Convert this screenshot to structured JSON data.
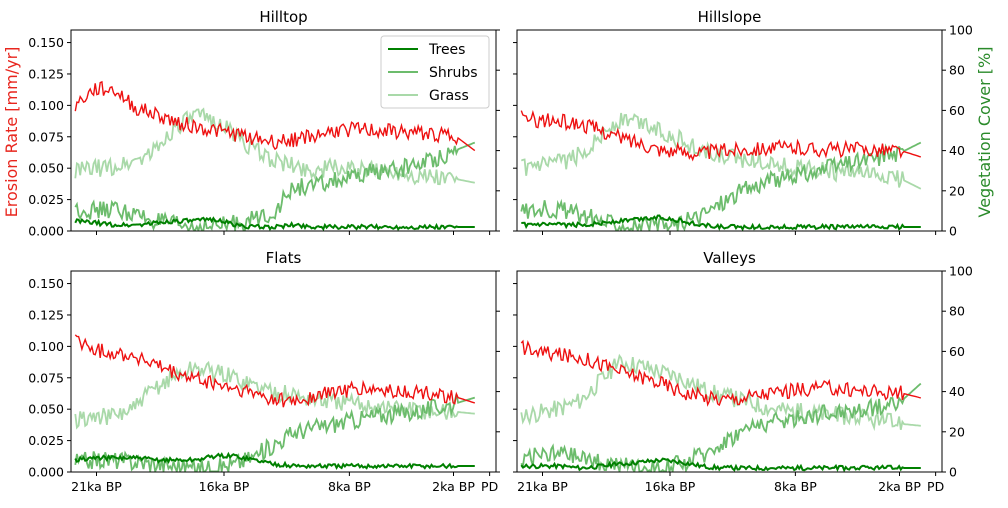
{
  "figure": {
    "ylabel_left": "Erosion Rate [mm/yr]",
    "ylabel_right": "Vegetation Cover [%]",
    "ylabel_left_color": "#e8261e",
    "ylabel_right_color": "#2a8a2a"
  },
  "chart_data": [
    {
      "type": "line",
      "title": "Hilltop",
      "xticks": [
        "21ka BP",
        "16ka BP",
        "8ka BP",
        "2ka BP",
        "PD"
      ],
      "ylim_left": [
        0,
        0.16
      ],
      "ylim_right": [
        0,
        100
      ],
      "legend": [
        "Trees",
        "Shrubs",
        "Grass"
      ],
      "legend_position": "top-right",
      "series": [
        {
          "name": "Erosion",
          "color": "#ee1111",
          "axis": "left",
          "values": [
            0.1,
            0.113,
            0.112,
            0.098,
            0.093,
            0.087,
            0.083,
            0.08,
            0.077,
            0.074,
            0.071,
            0.073,
            0.076,
            0.08,
            0.081,
            0.08,
            0.079,
            0.078,
            0.077,
            0.076,
            0.064
          ]
        },
        {
          "name": "Trees",
          "color": "#008000",
          "axis": "right",
          "values": [
            5,
            4,
            3,
            3,
            4,
            5,
            5,
            6,
            3,
            2,
            2,
            3,
            2,
            2,
            2,
            2,
            2,
            2,
            2,
            2,
            2
          ]
        },
        {
          "name": "Shrubs",
          "color": "#6cbc6c",
          "axis": "right",
          "values": [
            11,
            10,
            11,
            8,
            5,
            3,
            2,
            2,
            4,
            6,
            10,
            22,
            22,
            25,
            26,
            30,
            30,
            33,
            36,
            40,
            44
          ]
        },
        {
          "name": "Grass",
          "color": "#a9d9a9",
          "axis": "right",
          "values": [
            30,
            31,
            32,
            35,
            40,
            52,
            57,
            55,
            48,
            40,
            35,
            32,
            30,
            32,
            30,
            30,
            30,
            28,
            27,
            26,
            24
          ]
        }
      ]
    },
    {
      "type": "line",
      "title": "Hillslope",
      "xticks": [
        "21ka BP",
        "16ka BP",
        "8ka BP",
        "2ka BP",
        "PD"
      ],
      "ylim_left": [
        0,
        0.16
      ],
      "ylim_right": [
        0,
        100
      ],
      "series": [
        {
          "name": "Erosion",
          "color": "#ee1111",
          "axis": "left",
          "values": [
            0.09,
            0.088,
            0.087,
            0.085,
            0.08,
            0.074,
            0.07,
            0.065,
            0.063,
            0.062,
            0.064,
            0.065,
            0.066,
            0.066,
            0.066,
            0.065,
            0.065,
            0.065,
            0.065,
            0.064,
            0.059
          ]
        },
        {
          "name": "Trees",
          "color": "#008000",
          "axis": "right",
          "values": [
            3,
            3,
            3,
            3,
            4,
            5,
            6,
            7,
            5,
            3,
            2,
            2,
            2,
            2,
            2,
            2,
            2,
            2,
            2,
            2,
            2
          ]
        },
        {
          "name": "Shrubs",
          "color": "#6cbc6c",
          "axis": "right",
          "values": [
            10,
            11,
            11,
            8,
            5,
            3,
            2,
            2,
            4,
            8,
            14,
            20,
            24,
            26,
            28,
            30,
            33,
            35,
            37,
            39,
            44
          ]
        },
        {
          "name": "Grass",
          "color": "#a9d9a9",
          "axis": "right",
          "values": [
            31,
            32,
            34,
            38,
            48,
            55,
            54,
            50,
            45,
            40,
            37,
            36,
            35,
            33,
            31,
            30,
            29,
            28,
            27,
            26,
            21
          ]
        }
      ]
    },
    {
      "type": "line",
      "title": "Flats",
      "xticks": [
        "21ka BP",
        "16ka BP",
        "8ka BP",
        "2ka BP",
        "PD"
      ],
      "ylim_left": [
        0,
        0.16
      ],
      "ylim_right": [
        0,
        100
      ],
      "series": [
        {
          "name": "Erosion",
          "color": "#ee1111",
          "axis": "left",
          "values": [
            0.105,
            0.097,
            0.095,
            0.092,
            0.085,
            0.078,
            0.074,
            0.07,
            0.066,
            0.062,
            0.058,
            0.056,
            0.06,
            0.064,
            0.066,
            0.065,
            0.064,
            0.063,
            0.062,
            0.06,
            0.055
          ]
        },
        {
          "name": "Trees",
          "color": "#008000",
          "axis": "right",
          "values": [
            6,
            7,
            7,
            7,
            6,
            6,
            6,
            8,
            8,
            6,
            4,
            3,
            3,
            3,
            3,
            3,
            3,
            3,
            3,
            3,
            3
          ]
        },
        {
          "name": "Shrubs",
          "color": "#6cbc6c",
          "axis": "right",
          "values": [
            5,
            6,
            6,
            5,
            4,
            3,
            2,
            2,
            4,
            8,
            14,
            20,
            22,
            24,
            26,
            28,
            29,
            30,
            32,
            34,
            37
          ]
        },
        {
          "name": "Grass",
          "color": "#a9d9a9",
          "axis": "right",
          "values": [
            26,
            27,
            28,
            32,
            42,
            48,
            52,
            50,
            47,
            43,
            40,
            38,
            36,
            35,
            34,
            33,
            32,
            31,
            30,
            30,
            29
          ]
        }
      ]
    },
    {
      "type": "line",
      "title": "Valleys",
      "xticks": [
        "21ka BP",
        "16ka BP",
        "8ka BP",
        "2ka BP",
        "PD"
      ],
      "ylim_left": [
        0,
        0.16
      ],
      "ylim_right": [
        0,
        100
      ],
      "series": [
        {
          "name": "Erosion",
          "color": "#ee1111",
          "axis": "left",
          "values": [
            0.1,
            0.095,
            0.093,
            0.091,
            0.086,
            0.08,
            0.076,
            0.071,
            0.064,
            0.06,
            0.058,
            0.059,
            0.062,
            0.064,
            0.066,
            0.067,
            0.066,
            0.065,
            0.064,
            0.063,
            0.059
          ]
        },
        {
          "name": "Trees",
          "color": "#008000",
          "axis": "right",
          "values": [
            3,
            3,
            3,
            2,
            3,
            4,
            5,
            6,
            5,
            3,
            2,
            2,
            2,
            2,
            2,
            2,
            2,
            2,
            2,
            2,
            2
          ]
        },
        {
          "name": "Shrubs",
          "color": "#6cbc6c",
          "axis": "right",
          "values": [
            7,
            8,
            9,
            7,
            5,
            3,
            2,
            2,
            4,
            8,
            14,
            20,
            24,
            25,
            27,
            29,
            30,
            31,
            33,
            35,
            44
          ]
        },
        {
          "name": "Grass",
          "color": "#a9d9a9",
          "axis": "right",
          "values": [
            28,
            30,
            32,
            36,
            46,
            55,
            53,
            50,
            47,
            42,
            38,
            36,
            33,
            31,
            30,
            29,
            28,
            27,
            25,
            24,
            23
          ]
        }
      ]
    }
  ]
}
